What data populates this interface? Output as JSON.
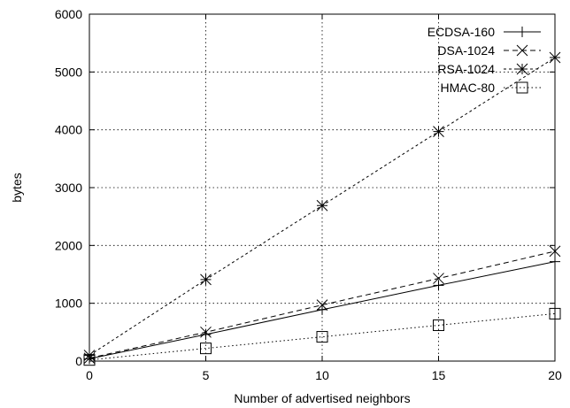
{
  "chart_data": {
    "type": "line",
    "xlabel": "Number of advertised neighbors",
    "ylabel": "bytes",
    "xlim": [
      0,
      20
    ],
    "ylim": [
      0,
      6000
    ],
    "xticks": [
      "0",
      "5",
      "10",
      "15",
      "20"
    ],
    "yticks": [
      "0",
      "1000",
      "2000",
      "3000",
      "4000",
      "5000",
      "6000"
    ],
    "grid": true,
    "legend_position": "top-right",
    "series": [
      {
        "name": "ECDSA-160",
        "marker": "plus",
        "dash": "solid",
        "x": [
          0,
          5,
          10,
          15,
          20
        ],
        "y": [
          40,
          460,
          890,
          1310,
          1720
        ]
      },
      {
        "name": "DSA-1024",
        "marker": "cross",
        "dash": "dashed",
        "x": [
          0,
          5,
          10,
          15,
          20
        ],
        "y": [
          50,
          500,
          970,
          1430,
          1900
        ]
      },
      {
        "name": "RSA-1024",
        "marker": "star",
        "dash": "dotted",
        "x": [
          0,
          5,
          10,
          15,
          20
        ],
        "y": [
          100,
          1410,
          2690,
          3970,
          5250
        ]
      },
      {
        "name": "HMAC-80",
        "marker": "square",
        "dash": "fine-dotted",
        "x": [
          0,
          5,
          10,
          15,
          20
        ],
        "y": [
          20,
          220,
          420,
          620,
          820
        ]
      }
    ]
  }
}
